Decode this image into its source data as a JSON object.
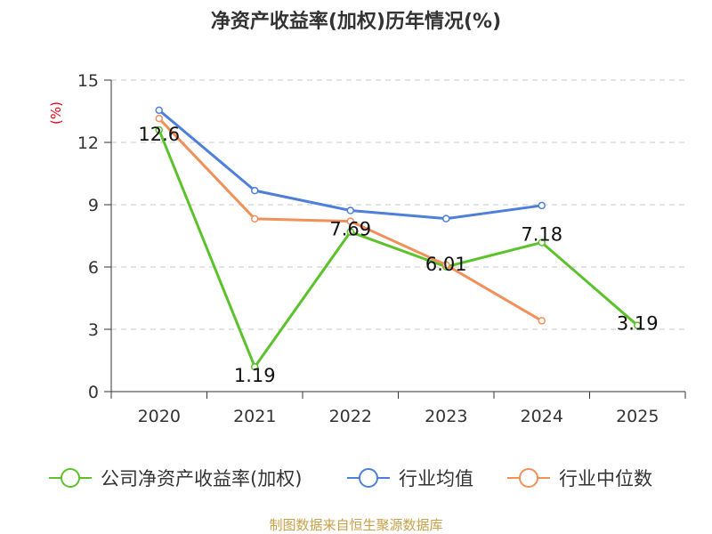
{
  "chart_data": {
    "type": "line",
    "title": "净资产收益率(加权)历年情况(%)",
    "ylabel": "(%)",
    "xlabel": "",
    "categories": [
      "2020",
      "2021",
      "2022",
      "2023",
      "2024",
      "2025"
    ],
    "ylim": [
      0,
      15
    ],
    "yticks": [
      0,
      3,
      6,
      9,
      12,
      15
    ],
    "grid": true,
    "legend_position": "bottom",
    "series": [
      {
        "name": "公司净资产收益率(加权)",
        "color": "#5cc22b",
        "values": [
          12.6,
          1.19,
          7.69,
          6.01,
          7.18,
          3.19
        ],
        "labels": [
          "12.6",
          "1.19",
          "7.69",
          "6.01",
          "7.18",
          "3.19"
        ]
      },
      {
        "name": "行业均值",
        "color": "#4e7fd9",
        "values": [
          13.55,
          9.68,
          8.72,
          8.33,
          8.96,
          null
        ]
      },
      {
        "name": "行业中位数",
        "color": "#f2905a",
        "values": [
          13.15,
          8.32,
          8.2,
          6.1,
          3.41,
          null
        ]
      }
    ]
  },
  "footer": "制图数据来自恒生聚源数据库"
}
